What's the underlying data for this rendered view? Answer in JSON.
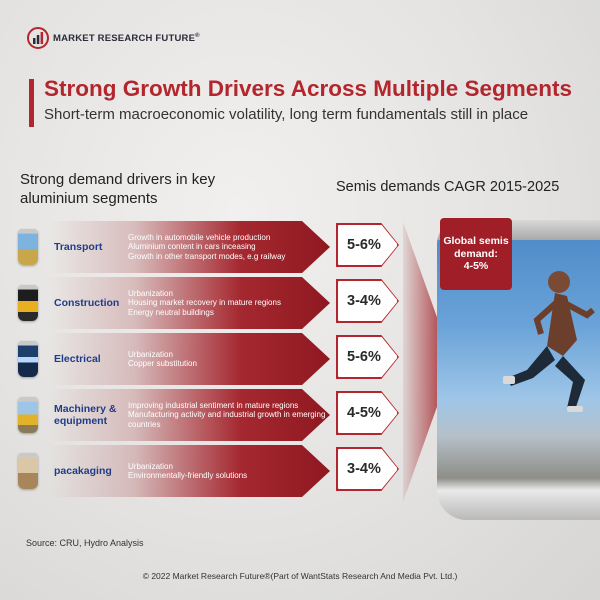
{
  "brand": {
    "name": "MARKET RESEARCH FUTURE",
    "registered": "®"
  },
  "header": {
    "title": "Strong Growth Drivers Across Multiple Segments",
    "subtitle": "Short-term macroeconomic volatility, long term fundamentals still in place"
  },
  "columns": {
    "left": "Strong demand drivers in key aluminium segments",
    "right": "Semis demands CAGR 2015-2025"
  },
  "segments": [
    {
      "label": "Transport",
      "icon": "airplane-train-icon",
      "drivers": [
        "Growth in automobile vehicle production",
        "Aluminium content in cars inceasing",
        "Growth in other transport modes, e.g railway"
      ],
      "cagr": "5-6%"
    },
    {
      "label": "Construction",
      "icon": "crane-icon",
      "drivers": [
        "Urbanization",
        "Housing market recovery in mature regions",
        "Energy neutral buildings"
      ],
      "cagr": "3-4%"
    },
    {
      "label": "Electrical",
      "icon": "bulb-icon",
      "drivers": [
        "Urbanization",
        "Copper substitution"
      ],
      "cagr": "5-6%"
    },
    {
      "label": "Machinery & equipment",
      "icon": "excavator-icon",
      "drivers": [
        "Improving industrial sentiment in mature regions",
        "Manufacturing activity and industrial growth in emerging countries"
      ],
      "cagr": "4-5%"
    },
    {
      "label": "pacakaging",
      "icon": "package-icon",
      "drivers": [
        "Urbanization",
        "Environmentally-friendly solutions"
      ],
      "cagr": "3-4%"
    }
  ],
  "global": {
    "line1": "Global semis",
    "line2": "demand:",
    "value": "4-5%"
  },
  "source": "Source: CRU, Hydro Analysis",
  "footer": "© 2022 Market Research Future®(Part of WantStats Research And Media Pvt. Ltd.)",
  "colors": {
    "accent": "#b3262d",
    "label": "#1f3c88"
  }
}
